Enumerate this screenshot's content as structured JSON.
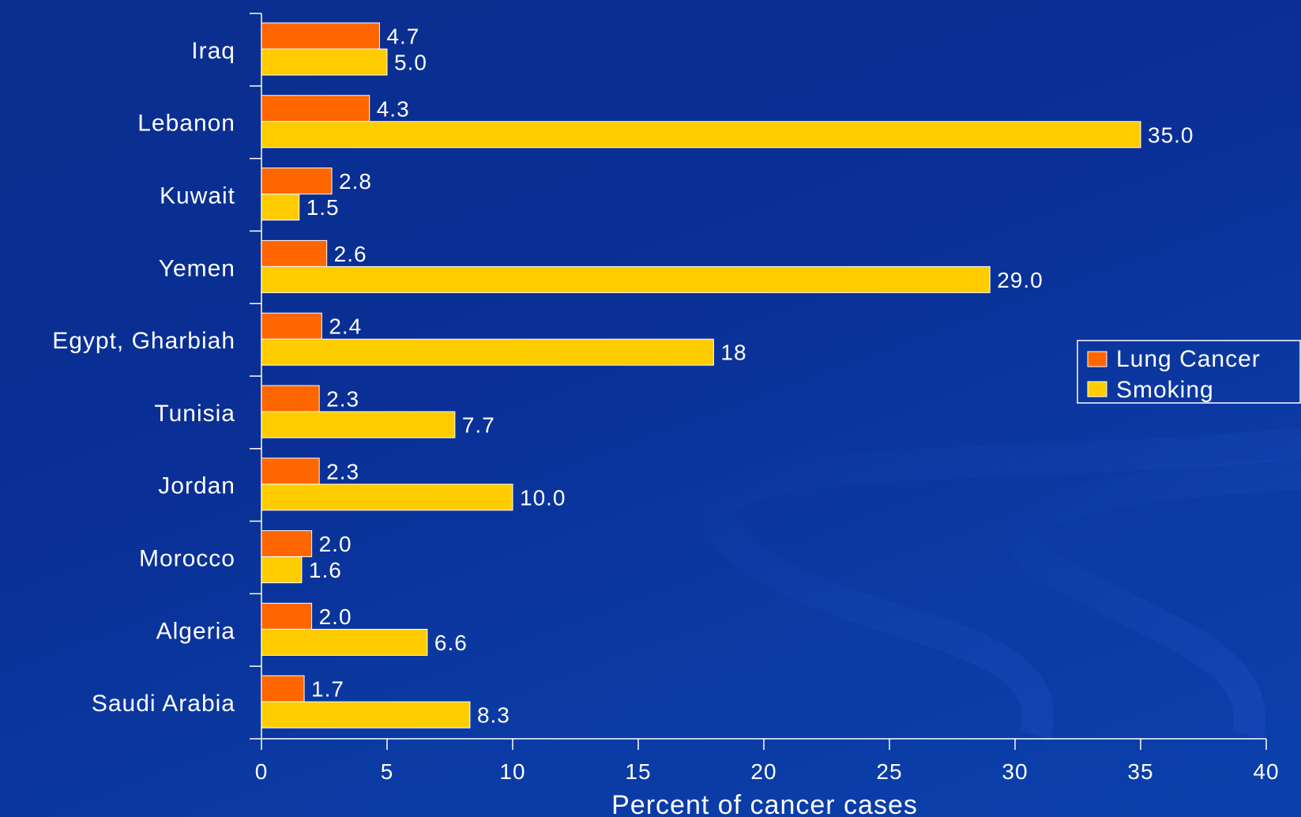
{
  "chart_data": {
    "type": "bar",
    "orientation": "horizontal",
    "categories": [
      "Iraq",
      "Lebanon",
      "Kuwait",
      "Yemen",
      "Egypt, Gharbiah",
      "Tunisia",
      "Jordan",
      "Morocco",
      "Algeria",
      "Saudi Arabia"
    ],
    "series": [
      {
        "name": "Lung Cancer",
        "color": "#ff6600",
        "values": [
          4.7,
          4.3,
          2.8,
          2.6,
          2.4,
          2.3,
          2.3,
          2.0,
          2.0,
          1.7
        ],
        "labels": [
          "4.7",
          "4.3",
          "2.8",
          "2.6",
          "2.4",
          "2.3",
          "2.3",
          "2.0",
          "2.0",
          "1.7"
        ]
      },
      {
        "name": "Smoking",
        "color": "#ffcc00",
        "values": [
          5.0,
          35.0,
          1.5,
          29.0,
          18,
          7.7,
          10.0,
          1.6,
          6.6,
          8.3
        ],
        "labels": [
          "5.0",
          "35.0",
          "1.5",
          "29.0",
          "18",
          "7.7",
          "10.0",
          "1.6",
          "6.6",
          "8.3"
        ]
      }
    ],
    "xlabel": "Percent of cancer cases",
    "xlim": [
      0,
      40
    ],
    "xticks": [
      "0",
      "5",
      "10",
      "15",
      "20",
      "25",
      "30",
      "35",
      "40"
    ],
    "grid": false,
    "legend_position": "right"
  }
}
